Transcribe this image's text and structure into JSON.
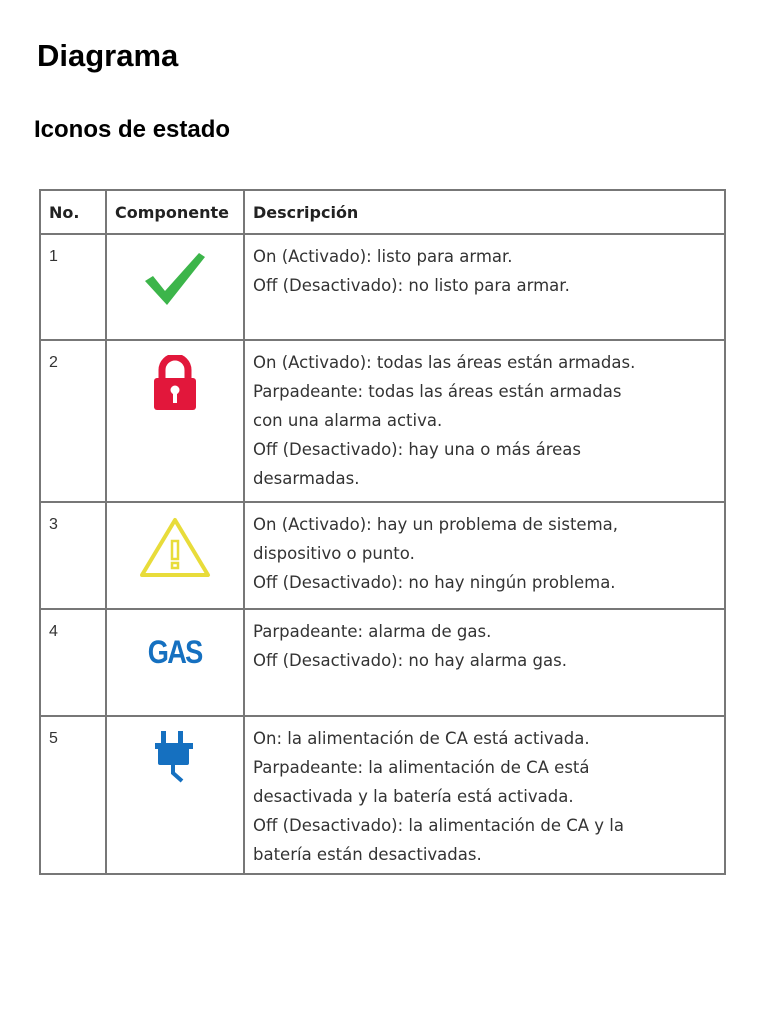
{
  "title": "Diagrama",
  "subtitle": "Iconos de estado",
  "table": {
    "headers": [
      "No.",
      "Componente",
      "Descripción"
    ],
    "rows": [
      {
        "no": "1",
        "icon": "check-icon",
        "color": "#3cb54a",
        "lines": [
          "On (Activado): listo para armar.",
          "Off (Desactivado): no listo para armar."
        ]
      },
      {
        "no": "2",
        "icon": "lock-icon",
        "color": "#e2173b",
        "lines": [
          "On (Activado): todas las áreas están armadas.",
          "Parpadeante: todas las áreas están armadas",
          "con una alarma activa.",
          "Off (Desactivado): hay una o más áreas",
          "desarmadas."
        ]
      },
      {
        "no": "3",
        "icon": "warning-icon",
        "color": "#e8dc3a",
        "lines": [
          "On (Activado): hay un problema de sistema,",
          "dispositivo o punto.",
          "Off (Desactivado): no hay ningún problema."
        ]
      },
      {
        "no": "4",
        "icon": "gas-icon",
        "icon_text": "GAS",
        "color": "#1570c0",
        "lines": [
          "Parpadeante: alarma de gas.",
          "Off (Desactivado): no hay alarma gas."
        ]
      },
      {
        "no": "5",
        "icon": "plug-icon",
        "color": "#1570c0",
        "lines": [
          "On: la alimentación de CA está activada.",
          "Parpadeante: la alimentación de CA está",
          "desactivada y la batería está activada.",
          "Off (Desactivado): la alimentación de CA y la",
          "batería están desactivadas."
        ]
      }
    ]
  }
}
